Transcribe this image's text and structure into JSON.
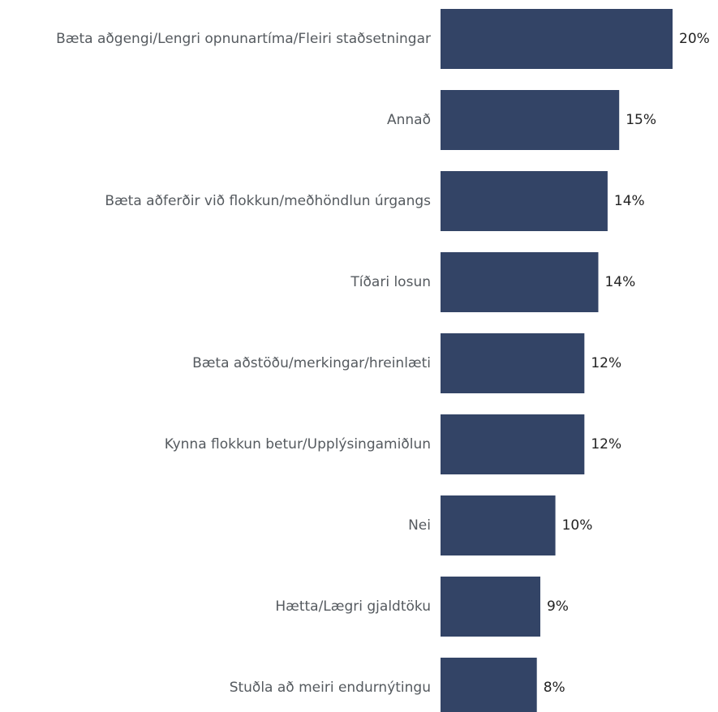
{
  "chart_data": {
    "type": "barh",
    "categories": [
      "Bæta aðgengi/Lengri opnunartíma/Fleiri staðsetningar",
      "Annað",
      "Bæta aðferðir við flokkun/meðhöndlun úrgangs",
      "Tíðari losun",
      "Bæta aðstöðu/merkingar/hreinlæti",
      "Kynna flokkun betur/Upplýsingamiðlun",
      "Nei",
      "Hætta/Lægri gjaldtöku",
      "Stuðla að meiri endurnýtingu"
    ],
    "values": [
      20,
      15.4,
      14.4,
      13.6,
      12.4,
      12.4,
      9.9,
      8.6,
      8.3
    ],
    "value_labels": [
      "20%",
      "15%",
      "14%",
      "14%",
      "12%",
      "12%",
      "10%",
      "9%",
      "8%"
    ],
    "color": "#334466"
  }
}
